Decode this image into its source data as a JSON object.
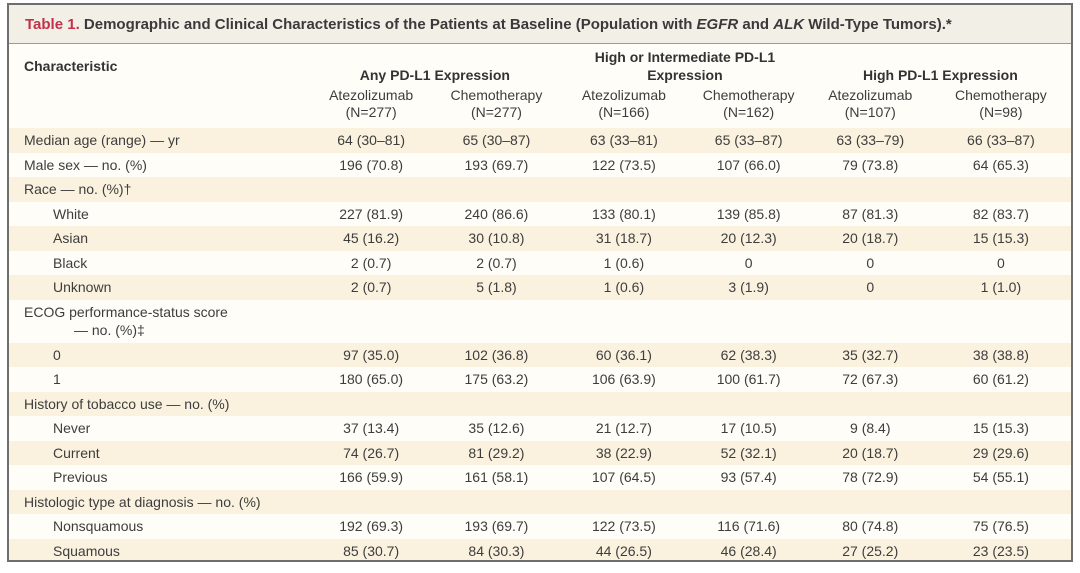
{
  "colors": {
    "accent_red": "#c23149",
    "row_shade": "#faf2df",
    "titlebar_bg": "#f2efe7",
    "border": "#6e6e6e",
    "text": "#3d3d3d"
  },
  "table": {
    "title": {
      "label": "Table 1.",
      "segment1": " Demographic and Clinical Characteristics of the Patients at Baseline (Population with ",
      "gene1": "EGFR",
      "segment2": " and ",
      "gene2": "ALK",
      "segment3": " Wild-Type Tumors).*"
    },
    "header": {
      "characteristic": "Characteristic",
      "groups": [
        {
          "label": "Any PD-L1 Expression"
        },
        {
          "label": "High or Intermediate PD-L1 Expression"
        },
        {
          "label": "High PD-L1 Expression"
        }
      ],
      "columns": [
        {
          "drug": "Atezolizumab",
          "n": "(N=277)"
        },
        {
          "drug": "Chemotherapy",
          "n": "(N=277)"
        },
        {
          "drug": "Atezolizumab",
          "n": "(N=166)"
        },
        {
          "drug": "Chemotherapy",
          "n": "(N=162)"
        },
        {
          "drug": "Atezolizumab",
          "n": "(N=107)"
        },
        {
          "drug": "Chemotherapy",
          "n": "(N=98)"
        }
      ]
    },
    "rows": [
      {
        "label": "Median age (range) — yr",
        "indent": 0,
        "shaded": true,
        "values": [
          "64 (30–81)",
          "65 (30–87)",
          "63 (33–81)",
          "65 (33–87)",
          "63 (33–79)",
          "66 (33–87)"
        ]
      },
      {
        "label": "Male sex — no. (%)",
        "indent": 0,
        "shaded": false,
        "values": [
          "196 (70.8)",
          "193 (69.7)",
          "122 (73.5)",
          "107 (66.0)",
          "79 (73.8)",
          "64 (65.3)"
        ]
      },
      {
        "label": "Race — no. (%)†",
        "indent": 0,
        "shaded": true,
        "values": [
          "",
          "",
          "",
          "",
          "",
          ""
        ]
      },
      {
        "label": "White",
        "indent": 1,
        "shaded": false,
        "values": [
          "227 (81.9)",
          "240 (86.6)",
          "133 (80.1)",
          "139 (85.8)",
          "87 (81.3)",
          "82 (83.7)"
        ]
      },
      {
        "label": "Asian",
        "indent": 1,
        "shaded": true,
        "values": [
          "45 (16.2)",
          "30 (10.8)",
          "31 (18.7)",
          "20 (12.3)",
          "20 (18.7)",
          "15 (15.3)"
        ]
      },
      {
        "label": "Black",
        "indent": 1,
        "shaded": false,
        "values": [
          "2 (0.7)",
          "2 (0.7)",
          "1 (0.6)",
          "0",
          "0",
          "0"
        ]
      },
      {
        "label": "Unknown",
        "indent": 1,
        "shaded": true,
        "values": [
          "2 (0.7)",
          "5 (1.8)",
          "1 (0.6)",
          "3 (1.9)",
          "0",
          "1 (1.0)"
        ]
      },
      {
        "label": "ECOG performance-status score",
        "label2": "— no. (%)‡",
        "indent": 0,
        "shaded": false,
        "values": [
          "",
          "",
          "",
          "",
          "",
          ""
        ]
      },
      {
        "label": "0",
        "indent": 1,
        "shaded": true,
        "values": [
          "97 (35.0)",
          "102 (36.8)",
          "60 (36.1)",
          "62 (38.3)",
          "35 (32.7)",
          "38 (38.8)"
        ]
      },
      {
        "label": "1",
        "indent": 1,
        "shaded": false,
        "values": [
          "180 (65.0)",
          "175 (63.2)",
          "106 (63.9)",
          "100 (61.7)",
          "72 (67.3)",
          "60 (61.2)"
        ]
      },
      {
        "label": "History of tobacco use — no. (%)",
        "indent": 0,
        "shaded": true,
        "values": [
          "",
          "",
          "",
          "",
          "",
          ""
        ]
      },
      {
        "label": "Never",
        "indent": 1,
        "shaded": false,
        "values": [
          "37 (13.4)",
          "35 (12.6)",
          "21 (12.7)",
          "17 (10.5)",
          "9 (8.4)",
          "15 (15.3)"
        ]
      },
      {
        "label": "Current",
        "indent": 1,
        "shaded": true,
        "values": [
          "74 (26.7)",
          "81 (29.2)",
          "38 (22.9)",
          "52 (32.1)",
          "20 (18.7)",
          "29 (29.6)"
        ]
      },
      {
        "label": "Previous",
        "indent": 1,
        "shaded": false,
        "values": [
          "166 (59.9)",
          "161 (58.1)",
          "107 (64.5)",
          "93 (57.4)",
          "78 (72.9)",
          "54 (55.1)"
        ]
      },
      {
        "label": "Histologic type at diagnosis — no. (%)",
        "indent": 0,
        "shaded": true,
        "values": [
          "",
          "",
          "",
          "",
          "",
          ""
        ]
      },
      {
        "label": "Nonsquamous",
        "indent": 1,
        "shaded": false,
        "values": [
          "192 (69.3)",
          "193 (69.7)",
          "122 (73.5)",
          "116 (71.6)",
          "80 (74.8)",
          "75 (76.5)"
        ]
      },
      {
        "label": "Squamous",
        "indent": 1,
        "shaded": true,
        "values": [
          "85 (30.7)",
          "84 (30.3)",
          "44 (26.5)",
          "46 (28.4)",
          "27 (25.2)",
          "23 (23.5)"
        ]
      }
    ]
  }
}
